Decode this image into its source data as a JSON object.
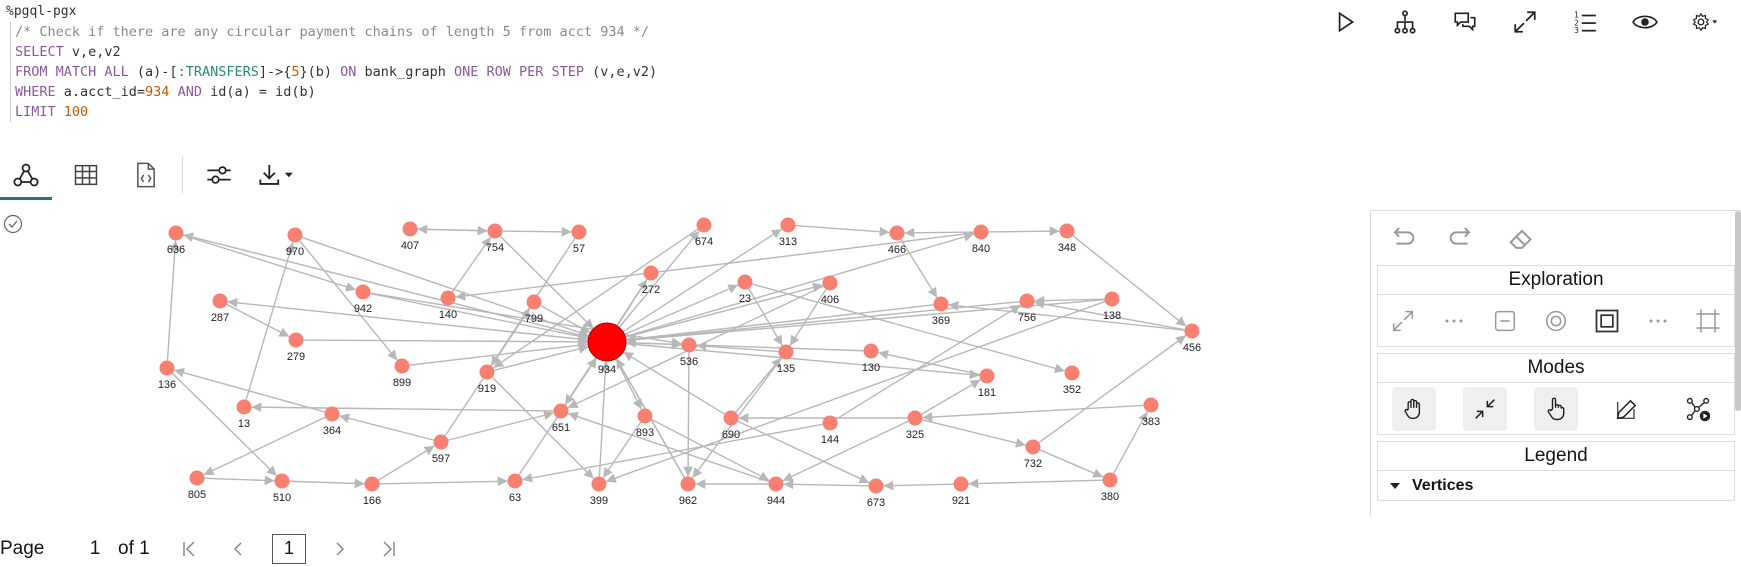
{
  "paragraph": {
    "type_tag": "%pgql-pgx"
  },
  "query": {
    "comment": "/* Check if there are any circular payment chains of length 5 from acct 934 */",
    "line2_select": "SELECT",
    "line2_rest": " v,e,v2",
    "line3_from": "FROM MATCH ALL",
    "line3_a": " (a)-[",
    "line3_label": ":TRANSFERS",
    "line3_b": "]->{",
    "line3_num": "5",
    "line3_c": "}(b) ",
    "line3_on": "ON",
    "line3_d": " bank_graph ",
    "line3_kw2": "ONE ROW PER STEP",
    "line3_e": " (v,e,v2)",
    "line4_where": "WHERE",
    "line4_a": " a.acct_id=",
    "line4_num": "934",
    "line4_and": " AND",
    "line4_b": " id(a) = id(b)",
    "line5_limit": "LIMIT",
    "line5_num": " 100"
  },
  "toolbar_icons": [
    "play-icon",
    "hierarchy-icon",
    "comment-icon",
    "expand-icon",
    "numbered-list-icon",
    "eye-icon",
    "gear-icon"
  ],
  "tabs": [
    {
      "name": "graph-tab",
      "icon": "graph-icon",
      "active": true
    },
    {
      "name": "table-tab",
      "icon": "table-icon",
      "active": false
    },
    {
      "name": "json-tab",
      "icon": "code-file-icon",
      "active": false
    },
    {
      "name": "settings-tab",
      "icon": "sliders-icon",
      "active": false
    },
    {
      "name": "download-tab",
      "icon": "download-icon",
      "active": false
    }
  ],
  "graph": {
    "node_color": "#f88070",
    "edge_color": "#b8b8b8",
    "focus_color": "#ff0000",
    "focus_node": "934",
    "nodes": [
      "636",
      "970",
      "407",
      "754",
      "57",
      "674",
      "313",
      "466",
      "840",
      "348",
      "287",
      "942",
      "140",
      "799",
      "272",
      "23",
      "406",
      "369",
      "756",
      "138",
      "456",
      "279",
      "899",
      "919",
      "934",
      "536",
      "135",
      "130",
      "181",
      "352",
      "136",
      "13",
      "364",
      "651",
      "893",
      "690",
      "144",
      "325",
      "383",
      "597",
      "732",
      "805",
      "510",
      "166",
      "63",
      "399",
      "962",
      "944",
      "673",
      "921",
      "380"
    ]
  },
  "panel": {
    "history_icons": [
      "undo-icon",
      "redo-icon",
      "eraser-icon"
    ],
    "exploration_title": "Exploration",
    "exploration_icons": [
      "expand-arrows-icon",
      "more-icon",
      "collapse-icon",
      "focus-icon",
      "fit-icon",
      "more-icon-2",
      "frame-icon"
    ],
    "modes_title": "Modes",
    "modes_icons": [
      "hand-pan-icon",
      "shrink-icon",
      "pointer-hand-icon",
      "edit-icon",
      "network-play-icon"
    ],
    "legend_title": "Legend",
    "vertices_label": "Vertices"
  },
  "pager": {
    "page_label": "Page",
    "page_value": "1",
    "of_label": "of 1",
    "current_page": "1"
  }
}
